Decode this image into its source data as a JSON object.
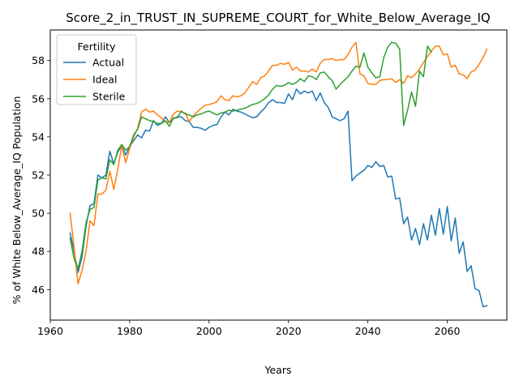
{
  "chart_data": {
    "type": "line",
    "title": "Score_2_in_TRUST_IN_SUPREME_COURT_for_White_Below_Average_IQ",
    "xlabel": "Years",
    "ylabel": "% of White Below_Average_IQ Population",
    "xlim": [
      1960,
      2075
    ],
    "ylim": [
      44.4,
      59.6
    ],
    "xticks": [
      1960,
      1980,
      2000,
      2020,
      2040,
      2060
    ],
    "yticks": [
      46,
      48,
      50,
      52,
      54,
      56,
      58
    ],
    "grid": false,
    "legend": {
      "title": "Fertility",
      "placement": "top-left"
    },
    "x": [
      1965,
      1966,
      1967,
      1968,
      1969,
      1970,
      1971,
      1972,
      1973,
      1974,
      1975,
      1976,
      1977,
      1978,
      1979,
      1980,
      1981,
      1982,
      1983,
      1984,
      1985,
      1986,
      1987,
      1988,
      1989,
      1990,
      1991,
      1992,
      1993,
      1994,
      1995,
      1996,
      1997,
      1998,
      1999,
      2000,
      2001,
      2002,
      2003,
      2004,
      2005,
      2006,
      2007,
      2008,
      2009,
      2010,
      2011,
      2012,
      2013,
      2014,
      2015,
      2016,
      2017,
      2018,
      2019,
      2020,
      2021,
      2022,
      2023,
      2024,
      2025,
      2026,
      2027,
      2028,
      2029,
      2030,
      2031,
      2032,
      2033,
      2034,
      2035,
      2036,
      2037,
      2038,
      2039,
      2040,
      2041,
      2042,
      2043,
      2044,
      2045,
      2046,
      2047,
      2048,
      2049,
      2050,
      2051,
      2052,
      2053,
      2054,
      2055,
      2056,
      2057,
      2058,
      2059,
      2060,
      2061,
      2062,
      2063,
      2064,
      2065,
      2066,
      2067,
      2068,
      2069,
      2070
    ],
    "series": [
      {
        "name": "Actual",
        "color": "#1f77b4",
        "values": [
          48.95,
          48.0,
          46.9,
          47.7,
          49.3,
          50.4,
          50.5,
          52.0,
          51.85,
          52.0,
          53.25,
          52.6,
          53.2,
          53.55,
          53.05,
          53.5,
          53.8,
          54.1,
          53.95,
          54.35,
          54.3,
          54.85,
          54.6,
          54.7,
          55.05,
          54.75,
          54.95,
          55.05,
          55.05,
          54.85,
          54.8,
          54.5,
          54.5,
          54.45,
          54.35,
          54.5,
          54.6,
          54.65,
          55.05,
          55.3,
          55.15,
          55.45,
          55.35,
          55.3,
          55.2,
          55.1,
          55.0,
          55.05,
          55.3,
          55.5,
          55.8,
          55.95,
          55.8,
          55.8,
          55.75,
          56.25,
          55.95,
          56.5,
          56.25,
          56.4,
          56.3,
          56.4,
          55.9,
          56.3,
          55.8,
          55.55,
          55.05,
          54.95,
          54.85,
          54.95,
          55.35,
          51.7,
          51.95,
          52.1,
          52.25,
          52.5,
          52.4,
          52.7,
          52.45,
          52.5,
          51.9,
          51.95,
          50.75,
          50.8,
          49.45,
          49.8,
          48.6,
          49.2,
          48.35,
          49.45,
          48.6,
          49.9,
          48.85,
          50.25,
          48.9,
          50.35,
          48.55,
          49.75,
          47.9,
          48.5,
          46.95,
          47.25,
          46.05,
          45.95,
          45.1,
          45.15
        ]
      },
      {
        "name": "Ideal",
        "color": "#ff7f0e",
        "values": [
          50.0,
          48.2,
          46.3,
          47.0,
          48.0,
          49.6,
          49.35,
          51.0,
          51.0,
          51.2,
          52.2,
          51.25,
          52.3,
          53.55,
          52.65,
          53.4,
          54.0,
          54.45,
          55.3,
          55.45,
          55.3,
          55.35,
          55.15,
          55.0,
          54.8,
          54.75,
          55.2,
          55.35,
          55.3,
          55.25,
          54.8,
          55.1,
          55.3,
          55.5,
          55.65,
          55.7,
          55.75,
          55.85,
          56.15,
          55.95,
          55.9,
          56.15,
          56.1,
          56.15,
          56.3,
          56.6,
          56.9,
          56.75,
          57.1,
          57.2,
          57.45,
          57.75,
          57.75,
          57.85,
          57.8,
          57.9,
          57.5,
          57.65,
          57.45,
          57.45,
          57.4,
          57.55,
          57.4,
          57.85,
          58.05,
          58.05,
          58.1,
          58.0,
          58.05,
          58.05,
          58.3,
          58.7,
          58.95,
          57.3,
          57.2,
          56.8,
          56.75,
          56.75,
          56.95,
          57.0,
          57.0,
          57.05,
          56.85,
          57.0,
          56.8,
          57.2,
          57.1,
          57.3,
          57.55,
          57.9,
          58.2,
          58.5,
          58.75,
          58.75,
          58.3,
          58.35,
          57.65,
          57.75,
          57.3,
          57.25,
          57.05,
          57.4,
          57.5,
          57.8,
          58.15,
          58.6
        ]
      },
      {
        "name": "Sterile",
        "color": "#2ca02c",
        "values": [
          48.7,
          47.6,
          47.1,
          48.0,
          49.5,
          50.2,
          50.3,
          51.75,
          51.85,
          51.8,
          52.8,
          52.55,
          53.3,
          53.6,
          53.3,
          53.5,
          54.1,
          54.4,
          55.05,
          54.95,
          54.85,
          54.8,
          54.7,
          54.7,
          54.85,
          54.55,
          55.0,
          55.0,
          55.35,
          55.2,
          55.15,
          55.05,
          55.15,
          55.2,
          55.3,
          55.35,
          55.25,
          55.15,
          55.25,
          55.3,
          55.4,
          55.35,
          55.4,
          55.45,
          55.5,
          55.6,
          55.7,
          55.75,
          55.85,
          56.0,
          56.2,
          56.5,
          56.7,
          56.65,
          56.7,
          56.85,
          56.75,
          56.85,
          57.05,
          56.9,
          57.2,
          57.15,
          57.0,
          57.35,
          57.4,
          57.15,
          56.95,
          56.5,
          56.75,
          56.95,
          57.15,
          57.45,
          57.7,
          57.65,
          58.4,
          57.65,
          57.35,
          57.1,
          57.15,
          58.15,
          58.7,
          58.95,
          58.9,
          58.6,
          54.6,
          55.4,
          56.35,
          55.6,
          57.45,
          57.15,
          58.75,
          58.45,
          null,
          null,
          null,
          null,
          null,
          null,
          null,
          null,
          null,
          null,
          null,
          null,
          null,
          null
        ]
      }
    ]
  }
}
